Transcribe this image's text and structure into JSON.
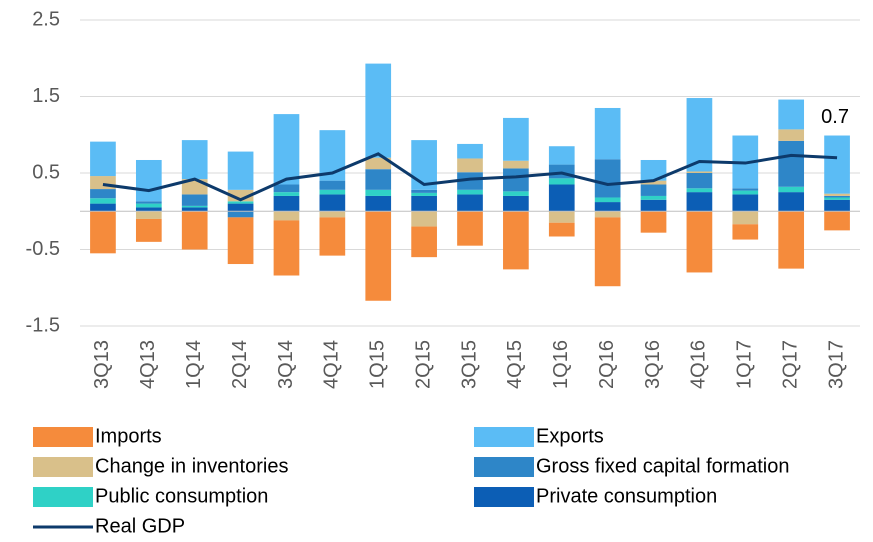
{
  "chart_data": {
    "type": "bar",
    "stacked": true,
    "categories": [
      "3Q13",
      "4Q13",
      "1Q14",
      "2Q14",
      "3Q14",
      "4Q14",
      "1Q15",
      "2Q15",
      "3Q15",
      "4Q15",
      "1Q16",
      "2Q16",
      "3Q16",
      "4Q16",
      "1Q17",
      "2Q17",
      "3Q17"
    ],
    "series": [
      {
        "name": "Imports",
        "color": "#f58b3c",
        "values": [
          -0.55,
          -0.3,
          -0.5,
          -0.61,
          -0.72,
          -0.5,
          -1.17,
          -0.4,
          -0.45,
          -0.76,
          -0.18,
          -0.9,
          -0.28,
          -0.8,
          -0.2,
          -0.75,
          -0.25
        ]
      },
      {
        "name": "Exports",
        "color": "#5bbcf5",
        "values": [
          0.45,
          0.54,
          0.51,
          0.5,
          0.92,
          0.66,
          1.23,
          0.65,
          0.19,
          0.56,
          0.24,
          0.67,
          0.27,
          0.96,
          0.69,
          0.39,
          0.76
        ]
      },
      {
        "name": "Change in inventories",
        "color": "#d9c08a",
        "values": [
          0.17,
          -0.1,
          0.2,
          0.15,
          -0.12,
          -0.08,
          0.15,
          -0.2,
          0.18,
          0.1,
          -0.15,
          -0.08,
          0.05,
          0.02,
          -0.17,
          0.15,
          0.03
        ]
      },
      {
        "name": "Gross fixed capital formation",
        "color": "#2e86c8",
        "values": [
          0.12,
          0.03,
          0.15,
          -0.08,
          0.1,
          0.12,
          0.27,
          0.04,
          0.23,
          0.3,
          0.18,
          0.5,
          0.15,
          0.2,
          0.03,
          0.6,
          0.02
        ]
      },
      {
        "name": "Public consumption",
        "color": "#2fd1c6",
        "values": [
          0.07,
          0.05,
          0.02,
          0.03,
          0.05,
          0.06,
          0.08,
          0.04,
          0.06,
          0.06,
          0.08,
          0.06,
          0.05,
          0.05,
          0.05,
          0.07,
          0.03
        ]
      },
      {
        "name": "Private consumption",
        "color": "#0c5eb5",
        "values": [
          0.1,
          0.05,
          0.05,
          0.1,
          0.2,
          0.22,
          0.2,
          0.2,
          0.22,
          0.2,
          0.35,
          0.12,
          0.15,
          0.25,
          0.22,
          0.25,
          0.15
        ]
      }
    ],
    "line": {
      "name": "Real GDP",
      "color": "#0d3a6b",
      "values": [
        0.35,
        0.27,
        0.42,
        0.15,
        0.42,
        0.5,
        0.75,
        0.35,
        0.42,
        0.45,
        0.5,
        0.35,
        0.4,
        0.65,
        0.63,
        0.73,
        0.7
      ]
    },
    "annotation": "0.7",
    "ylim": [
      -1.5,
      2.5
    ],
    "yticks": [
      -1.5,
      -0.5,
      0.5,
      1.5,
      2.5
    ],
    "grid": true
  }
}
